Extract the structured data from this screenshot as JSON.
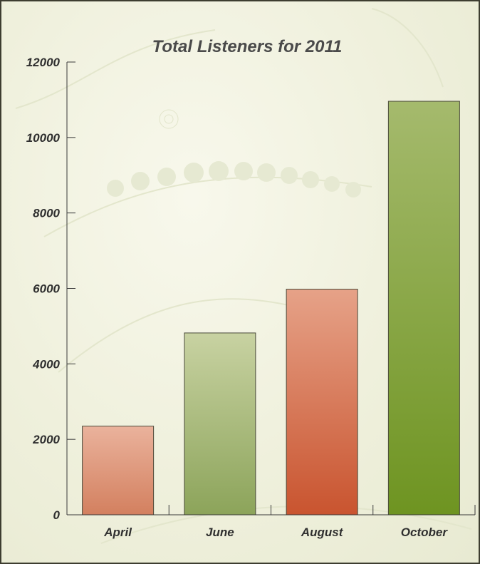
{
  "colors": {
    "background": "#f1f1de",
    "frame": "#3d3d30",
    "axis": "#3a3a3a",
    "text": "#2f2f2f",
    "salmon_light": "#eab29c",
    "salmon_dark": "#d3805f",
    "green_light": "#c8d2a2",
    "green_dark": "#8ca45a",
    "orange_light": "#e6a288",
    "orange_dark": "#c9542f",
    "olive_light": "#a5ba6d",
    "olive_dark": "#6e9421"
  },
  "chart_data": {
    "type": "bar",
    "title": "Total Listeners for 2011",
    "xlabel": "",
    "ylabel": "",
    "categories": [
      "April",
      "June",
      "August",
      "October"
    ],
    "values": [
      2350,
      4820,
      5980,
      10960
    ],
    "ylim": [
      0,
      12000
    ],
    "yticks": [
      0,
      2000,
      4000,
      6000,
      8000,
      10000,
      12000
    ],
    "ytick_labels": [
      "0",
      "2000",
      "4000",
      "6000",
      "8000",
      "10000",
      "12000"
    ],
    "bar_colors": [
      [
        "#eab29c",
        "#d3805f"
      ],
      [
        "#c8d2a2",
        "#8ca45a"
      ],
      [
        "#e6a288",
        "#c9542f"
      ],
      [
        "#a5ba6d",
        "#6e9421"
      ]
    ],
    "grid": false,
    "legend": "none"
  }
}
